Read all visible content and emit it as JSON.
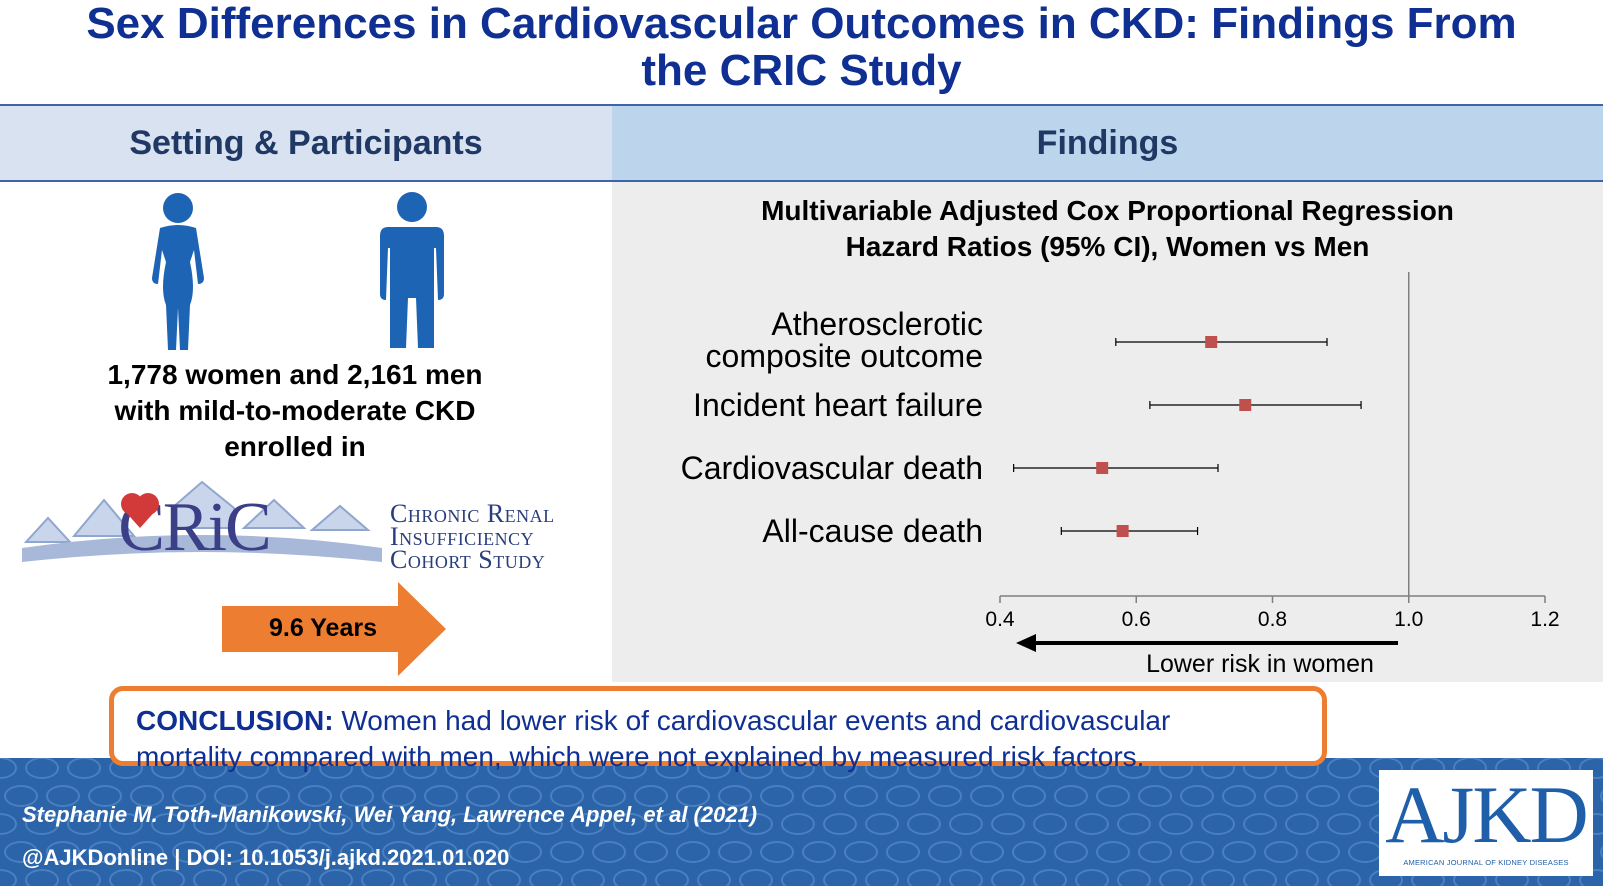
{
  "title": {
    "line1": "Sex Differences in Cardiovascular Outcomes in CKD: Findings From",
    "line2": "the CRIC Study"
  },
  "left_panel": {
    "header": "Setting & Participants",
    "participants": {
      "line1": "1,778 women and 2,161 men",
      "line2": "with mild-to-moderate CKD",
      "line3": "enrolled in"
    },
    "cric_logo_text": "CRiC",
    "cric_full_name": {
      "line1": "Chronic Renal",
      "line2": "Insufficiency",
      "line3": "Cohort Study"
    },
    "followup": "9.6 Years"
  },
  "right_panel": {
    "header": "Findings"
  },
  "colors": {
    "title_blue": "#0f2f92",
    "point_red": "#c0504d",
    "arrow_orange": "#ed7d31",
    "footer_blue": "#2b64a8",
    "figure_blue": "#1e64b4"
  },
  "chart_data": {
    "type": "forest",
    "title_line1": "Multivariable Adjusted Cox Proportional Regression",
    "title_line2": "Hazard Ratios (95% CI), Women vs Men",
    "outcomes": [
      {
        "label_lines": [
          "Atherosclerotic",
          "composite outcome"
        ],
        "hr": 0.71,
        "ci_low": 0.57,
        "ci_high": 0.88
      },
      {
        "label_lines": [
          "Incident heart failure"
        ],
        "hr": 0.76,
        "ci_low": 0.62,
        "ci_high": 0.93
      },
      {
        "label_lines": [
          "Cardiovascular death"
        ],
        "hr": 0.55,
        "ci_low": 0.42,
        "ci_high": 0.72
      },
      {
        "label_lines": [
          "All-cause death"
        ],
        "hr": 0.58,
        "ci_low": 0.49,
        "ci_high": 0.69
      }
    ],
    "xlim": [
      0.4,
      1.2
    ],
    "xticks": [
      "0.4",
      "0.6",
      "0.8",
      "1.0",
      "1.2"
    ],
    "reference_line": 1.0,
    "arrow_label": "Lower risk in women",
    "grid": false
  },
  "conclusion": {
    "label": "CONCLUSION:",
    "text_line1": " Women had lower risk of cardiovascular events and cardiovascular",
    "text_line2": "mortality compared with men, which were not explained by measured risk factors."
  },
  "footer": {
    "authors": "Stephanie M. Toth-Manikowski, Wei Yang, Lawrence Appel, et al  (2021)",
    "doi": "@AJKDonline | DOI: 10.1053/j.ajkd.2021.01.020",
    "journal_logo": "AJKD",
    "journal_full": "AMERICAN JOURNAL OF KIDNEY DISEASES"
  }
}
